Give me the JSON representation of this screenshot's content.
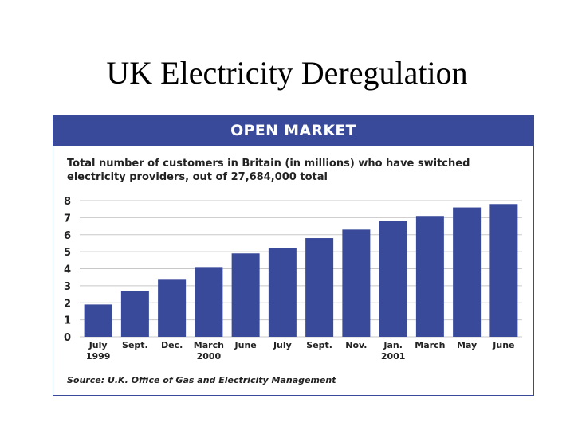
{
  "slide": {
    "title": "UK Electricity Deregulation"
  },
  "panel": {
    "header": "OPEN MARKET",
    "subtitle": "Total number of customers in Britain (in millions) who have switched electricity providers, out of 27,684,000 total",
    "source": "Source: U.K. Office of Gas and Electricity Management"
  },
  "colors": {
    "brand": "#3a4a9a",
    "bar": "#3a4a9a",
    "grid": "#c8c8c8"
  },
  "chart_data": {
    "type": "bar",
    "title": "OPEN MARKET",
    "subtitle": "Total number of customers in Britain (in millions) who have switched electricity providers, out of 27,684,000 total",
    "categories": [
      [
        "July",
        "1999"
      ],
      [
        "Sept."
      ],
      [
        "Dec."
      ],
      [
        "March",
        "2000"
      ],
      [
        "June"
      ],
      [
        "July"
      ],
      [
        "Sept."
      ],
      [
        "Nov."
      ],
      [
        "Jan.",
        "2001"
      ],
      [
        "March"
      ],
      [
        "May"
      ],
      [
        "June"
      ]
    ],
    "values": [
      1.9,
      2.7,
      3.4,
      4.1,
      4.9,
      5.2,
      5.8,
      6.3,
      6.8,
      7.1,
      7.6,
      7.8
    ],
    "yticks": [
      0,
      1,
      2,
      3,
      4,
      5,
      6,
      7,
      8
    ],
    "ylim": [
      0,
      8
    ],
    "grid": true,
    "source": "Source: U.K. Office of Gas and Electricity Management"
  }
}
